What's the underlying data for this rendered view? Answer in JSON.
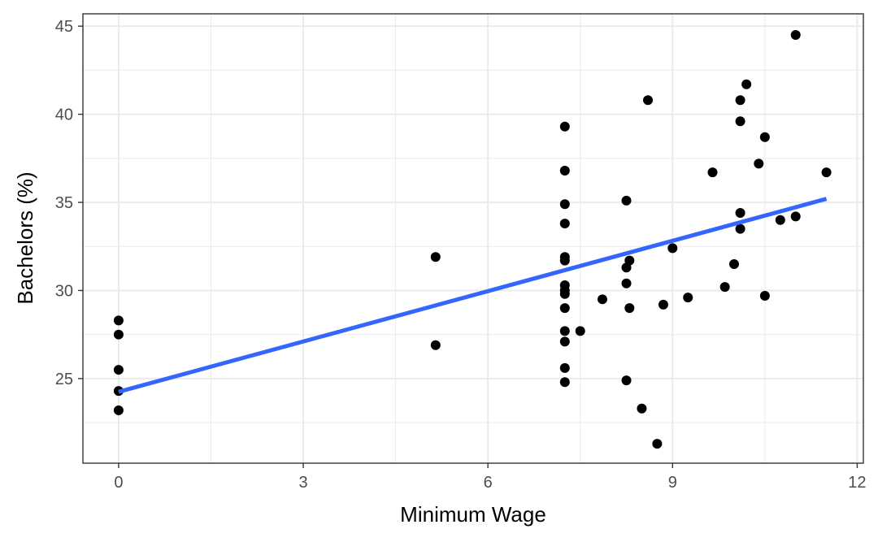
{
  "chart_data": {
    "type": "scatter",
    "title": "",
    "xlabel": "Minimum Wage",
    "ylabel": "Bachelors (%)",
    "xlim": [
      -0.58,
      12.1
    ],
    "ylim": [
      20.2,
      45.7
    ],
    "x_ticks": [
      "0",
      "3",
      "6",
      "9",
      "12"
    ],
    "y_ticks": [
      "25",
      "30",
      "35",
      "40",
      "45"
    ],
    "grid": true,
    "point_color": "#000000",
    "trend_color": "#3366FF",
    "points": [
      [
        0,
        28.3
      ],
      [
        0,
        27.5
      ],
      [
        0,
        25.5
      ],
      [
        0,
        24.3
      ],
      [
        0,
        23.2
      ],
      [
        5.15,
        31.9
      ],
      [
        5.15,
        26.9
      ],
      [
        7.25,
        39.3
      ],
      [
        7.25,
        36.8
      ],
      [
        7.25,
        34.9
      ],
      [
        7.25,
        33.8
      ],
      [
        7.25,
        31.9
      ],
      [
        7.25,
        31.7
      ],
      [
        7.25,
        30.3
      ],
      [
        7.25,
        30.0
      ],
      [
        7.25,
        29.8
      ],
      [
        7.25,
        29.0
      ],
      [
        7.25,
        27.7
      ],
      [
        7.25,
        27.1
      ],
      [
        7.25,
        25.6
      ],
      [
        7.25,
        24.8
      ],
      [
        7.5,
        27.7
      ],
      [
        7.86,
        29.5
      ],
      [
        8.25,
        35.1
      ],
      [
        8.25,
        31.3
      ],
      [
        8.25,
        30.4
      ],
      [
        8.25,
        24.9
      ],
      [
        8.3,
        31.7
      ],
      [
        8.3,
        29.0
      ],
      [
        8.5,
        23.3
      ],
      [
        8.6,
        40.8
      ],
      [
        8.75,
        21.3
      ],
      [
        8.85,
        29.2
      ],
      [
        9.0,
        32.4
      ],
      [
        9.25,
        29.6
      ],
      [
        9.65,
        36.7
      ],
      [
        9.85,
        30.2
      ],
      [
        10.0,
        31.5
      ],
      [
        10.1,
        40.8
      ],
      [
        10.1,
        39.6
      ],
      [
        10.1,
        34.4
      ],
      [
        10.1,
        33.5
      ],
      [
        10.2,
        41.7
      ],
      [
        10.4,
        37.2
      ],
      [
        10.5,
        38.7
      ],
      [
        10.5,
        29.7
      ],
      [
        10.75,
        34.0
      ],
      [
        11.0,
        44.5
      ],
      [
        11.0,
        34.2
      ],
      [
        11.5,
        36.7
      ]
    ],
    "trend_line": {
      "x": [
        0,
        11.5
      ],
      "y": [
        24.25,
        35.2
      ]
    }
  }
}
